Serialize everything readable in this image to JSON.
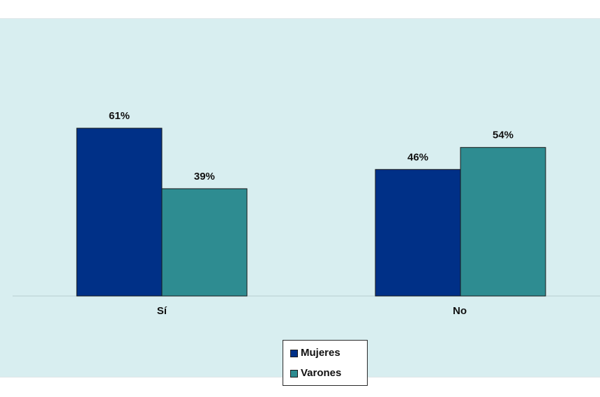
{
  "colors": {
    "mujeres": "#003087",
    "varones": "#2e8c91",
    "background": "#d8eef0",
    "axis": "#b9cdd0"
  },
  "chart_data": {
    "type": "bar",
    "title": "",
    "xlabel": "",
    "ylabel": "",
    "categories": [
      "Sí",
      "No"
    ],
    "series": [
      {
        "name": "Mujeres",
        "values": [
          61,
          46
        ],
        "labels": [
          "61%",
          "46%"
        ]
      },
      {
        "name": "Varones",
        "values": [
          39,
          54
        ],
        "labels": [
          "39%",
          "54%"
        ]
      }
    ],
    "ylim": [
      0,
      100
    ],
    "grid": false,
    "legend": "bottom-center"
  }
}
